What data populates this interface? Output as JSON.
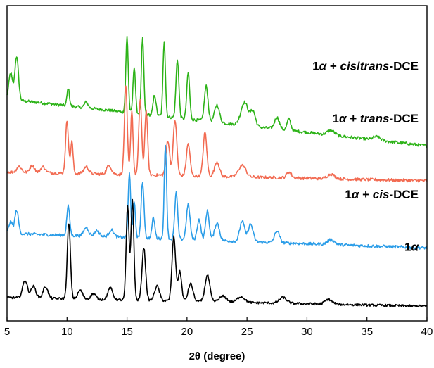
{
  "chart_data": {
    "type": "line",
    "title": "",
    "xlabel": "2θ (degree)",
    "ylabel": "",
    "xlim": [
      5,
      40
    ],
    "xticks": [
      5,
      10,
      15,
      20,
      25,
      30,
      35,
      40
    ],
    "yticks_shown": false,
    "grid": false,
    "legend": "none (series labelled inline, right side)",
    "series": [
      {
        "name": "1α + cis/trans-DCE",
        "label_parts": [
          {
            "text": "1",
            "style": "normal"
          },
          {
            "text": "α",
            "style": "italic"
          },
          {
            "text": " + ",
            "style": "normal"
          },
          {
            "text": "cis",
            "style": "italic"
          },
          {
            "text": "/",
            "style": "normal"
          },
          {
            "text": "trans",
            "style": "italic"
          },
          {
            "text": "-DCE",
            "style": "normal"
          }
        ],
        "color": "#2db318",
        "baseline": 3.6,
        "slope": -0.8,
        "noise": 0.05,
        "peaks": [
          [
            5.3,
            0.45,
            0.15
          ],
          [
            5.8,
            0.75,
            0.15
          ],
          [
            10.1,
            0.3,
            0.1
          ],
          [
            11.6,
            0.1,
            0.15
          ],
          [
            15.0,
            1.3,
            0.1
          ],
          [
            15.6,
            0.8,
            0.1
          ],
          [
            16.3,
            1.3,
            0.1
          ],
          [
            17.3,
            0.35,
            0.12
          ],
          [
            18.1,
            1.3,
            0.1
          ],
          [
            19.2,
            1.0,
            0.12
          ],
          [
            20.1,
            0.8,
            0.12
          ],
          [
            21.6,
            0.6,
            0.15
          ],
          [
            22.5,
            0.3,
            0.2
          ],
          [
            24.8,
            0.4,
            0.3
          ],
          [
            25.5,
            0.25,
            0.2
          ],
          [
            27.5,
            0.2,
            0.2
          ],
          [
            28.5,
            0.2,
            0.15
          ],
          [
            32.0,
            0.08,
            0.3
          ],
          [
            35.8,
            0.06,
            0.3
          ]
        ]
      },
      {
        "name": "1α + trans-DCE",
        "label_parts": [
          {
            "text": "1",
            "style": "normal"
          },
          {
            "text": "α",
            "style": "italic"
          },
          {
            "text": " + ",
            "style": "normal"
          },
          {
            "text": "trans",
            "style": "italic"
          },
          {
            "text": "-DCE",
            "style": "normal"
          }
        ],
        "color": "#f26b52",
        "baseline": 2.35,
        "slope": -0.15,
        "noise": 0.05,
        "peaks": [
          [
            6.0,
            0.1,
            0.2
          ],
          [
            7.1,
            0.12,
            0.2
          ],
          [
            8.0,
            0.1,
            0.2
          ],
          [
            10.0,
            0.9,
            0.12
          ],
          [
            10.4,
            0.55,
            0.1
          ],
          [
            11.6,
            0.12,
            0.2
          ],
          [
            13.5,
            0.15,
            0.2
          ],
          [
            14.9,
            1.5,
            0.12
          ],
          [
            15.4,
            1.1,
            0.1
          ],
          [
            16.1,
            1.3,
            0.12
          ],
          [
            16.6,
            1.1,
            0.12
          ],
          [
            18.4,
            0.6,
            0.15
          ],
          [
            19.0,
            0.95,
            0.15
          ],
          [
            20.1,
            0.55,
            0.15
          ],
          [
            21.5,
            0.75,
            0.15
          ],
          [
            22.5,
            0.25,
            0.2
          ],
          [
            24.6,
            0.2,
            0.3
          ],
          [
            28.5,
            0.1,
            0.2
          ],
          [
            32.0,
            0.08,
            0.3
          ]
        ]
      },
      {
        "name": "1α + cis-DCE",
        "label_parts": [
          {
            "text": "1",
            "style": "normal"
          },
          {
            "text": "α",
            "style": "italic"
          },
          {
            "text": " + ",
            "style": "normal"
          },
          {
            "text": "cis",
            "style": "italic"
          },
          {
            "text": "-DCE",
            "style": "normal"
          }
        ],
        "color": "#2b9de8",
        "baseline": 1.3,
        "slope": -0.25,
        "noise": 0.05,
        "peaks": [
          [
            5.3,
            0.2,
            0.15
          ],
          [
            5.8,
            0.4,
            0.15
          ],
          [
            10.1,
            0.5,
            0.12
          ],
          [
            11.6,
            0.15,
            0.2
          ],
          [
            12.5,
            0.1,
            0.2
          ],
          [
            13.7,
            0.12,
            0.2
          ],
          [
            15.2,
            1.1,
            0.1
          ],
          [
            15.6,
            0.6,
            0.1
          ],
          [
            16.3,
            0.95,
            0.12
          ],
          [
            17.2,
            0.35,
            0.12
          ],
          [
            18.2,
            1.6,
            0.1
          ],
          [
            19.1,
            0.8,
            0.12
          ],
          [
            20.1,
            0.6,
            0.15
          ],
          [
            21.0,
            0.35,
            0.15
          ],
          [
            21.7,
            0.5,
            0.15
          ],
          [
            22.5,
            0.3,
            0.2
          ],
          [
            24.6,
            0.35,
            0.2
          ],
          [
            25.3,
            0.3,
            0.2
          ],
          [
            27.5,
            0.2,
            0.2
          ],
          [
            32.0,
            0.08,
            0.3
          ]
        ]
      },
      {
        "name": "1α",
        "label_parts": [
          {
            "text": "1",
            "style": "normal"
          },
          {
            "text": "α",
            "style": "italic"
          }
        ],
        "color": "#000000",
        "baseline": 0.2,
        "slope": -0.15,
        "noise": 0.04,
        "peaks": [
          [
            6.5,
            0.3,
            0.2
          ],
          [
            7.2,
            0.2,
            0.2
          ],
          [
            8.2,
            0.2,
            0.2
          ],
          [
            10.15,
            1.3,
            0.13
          ],
          [
            11.1,
            0.15,
            0.2
          ],
          [
            12.2,
            0.1,
            0.2
          ],
          [
            13.6,
            0.2,
            0.2
          ],
          [
            15.05,
            1.6,
            0.12
          ],
          [
            15.45,
            1.7,
            0.12
          ],
          [
            16.4,
            0.9,
            0.15
          ],
          [
            17.5,
            0.25,
            0.2
          ],
          [
            18.9,
            1.1,
            0.15
          ],
          [
            19.4,
            0.5,
            0.15
          ],
          [
            20.3,
            0.3,
            0.2
          ],
          [
            21.7,
            0.45,
            0.2
          ],
          [
            23.0,
            0.1,
            0.3
          ],
          [
            24.5,
            0.1,
            0.3
          ],
          [
            28.0,
            0.1,
            0.3
          ],
          [
            31.8,
            0.08,
            0.3
          ]
        ]
      }
    ]
  }
}
